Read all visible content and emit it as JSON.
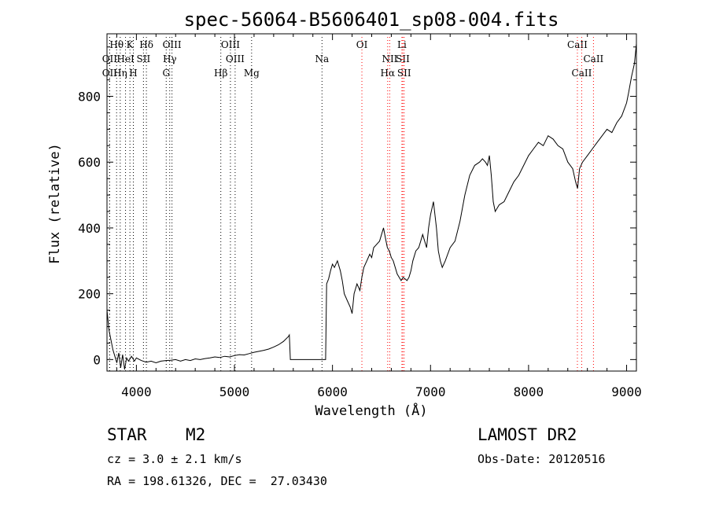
{
  "chart_data": {
    "type": "line",
    "title": "spec-56064-B5606401_sp08-004.fits",
    "xlabel": "Wavelength (Å)",
    "ylabel": "Flux (relative)",
    "xlim": [
      3700,
      9100
    ],
    "ylim": [
      -35,
      990
    ],
    "xticks": [
      4000,
      5000,
      6000,
      7000,
      8000,
      9000
    ],
    "yticks": [
      0,
      200,
      400,
      600,
      800
    ],
    "grid": false,
    "series": [
      {
        "points": [
          [
            3700,
            150
          ],
          [
            3720,
            90
          ],
          [
            3740,
            60
          ],
          [
            3760,
            30
          ],
          [
            3780,
            10
          ],
          [
            3800,
            -10
          ],
          [
            3820,
            20
          ],
          [
            3840,
            -25
          ],
          [
            3860,
            15
          ],
          [
            3880,
            -30
          ],
          [
            3900,
            5
          ],
          [
            3920,
            -5
          ],
          [
            3950,
            10
          ],
          [
            3980,
            -5
          ],
          [
            4000,
            5
          ],
          [
            4050,
            -3
          ],
          [
            4100,
            -8
          ],
          [
            4150,
            -5
          ],
          [
            4200,
            -10
          ],
          [
            4250,
            -5
          ],
          [
            4300,
            -3
          ],
          [
            4350,
            -2
          ],
          [
            4400,
            0
          ],
          [
            4450,
            -5
          ],
          [
            4500,
            0
          ],
          [
            4550,
            -3
          ],
          [
            4600,
            2
          ],
          [
            4650,
            0
          ],
          [
            4700,
            3
          ],
          [
            4750,
            5
          ],
          [
            4800,
            8
          ],
          [
            4850,
            6
          ],
          [
            4900,
            10
          ],
          [
            4950,
            8
          ],
          [
            5000,
            12
          ],
          [
            5050,
            15
          ],
          [
            5100,
            14
          ],
          [
            5150,
            18
          ],
          [
            5200,
            22
          ],
          [
            5250,
            25
          ],
          [
            5300,
            28
          ],
          [
            5350,
            32
          ],
          [
            5400,
            38
          ],
          [
            5450,
            45
          ],
          [
            5500,
            55
          ],
          [
            5550,
            70
          ],
          [
            5560,
            75
          ],
          [
            5570,
            0
          ],
          [
            5930,
            0
          ],
          [
            5940,
            230
          ],
          [
            5960,
            245
          ],
          [
            5980,
            270
          ],
          [
            6000,
            290
          ],
          [
            6020,
            280
          ],
          [
            6050,
            300
          ],
          [
            6080,
            270
          ],
          [
            6100,
            240
          ],
          [
            6120,
            200
          ],
          [
            6150,
            180
          ],
          [
            6180,
            160
          ],
          [
            6200,
            140
          ],
          [
            6220,
            200
          ],
          [
            6250,
            230
          ],
          [
            6280,
            210
          ],
          [
            6300,
            250
          ],
          [
            6320,
            280
          ],
          [
            6350,
            300
          ],
          [
            6380,
            320
          ],
          [
            6400,
            310
          ],
          [
            6420,
            340
          ],
          [
            6450,
            350
          ],
          [
            6480,
            360
          ],
          [
            6500,
            380
          ],
          [
            6520,
            400
          ],
          [
            6540,
            370
          ],
          [
            6560,
            340
          ],
          [
            6580,
            330
          ],
          [
            6600,
            310
          ],
          [
            6620,
            300
          ],
          [
            6640,
            280
          ],
          [
            6660,
            260
          ],
          [
            6680,
            250
          ],
          [
            6700,
            240
          ],
          [
            6720,
            250
          ],
          [
            6740,
            245
          ],
          [
            6760,
            240
          ],
          [
            6780,
            250
          ],
          [
            6800,
            270
          ],
          [
            6820,
            300
          ],
          [
            6850,
            330
          ],
          [
            6880,
            340
          ],
          [
            6900,
            360
          ],
          [
            6920,
            380
          ],
          [
            6940,
            360
          ],
          [
            6960,
            340
          ],
          [
            6980,
            400
          ],
          [
            7000,
            440
          ],
          [
            7030,
            480
          ],
          [
            7060,
            400
          ],
          [
            7080,
            330
          ],
          [
            7100,
            300
          ],
          [
            7120,
            280
          ],
          [
            7150,
            300
          ],
          [
            7200,
            340
          ],
          [
            7250,
            360
          ],
          [
            7300,
            420
          ],
          [
            7350,
            500
          ],
          [
            7400,
            560
          ],
          [
            7450,
            590
          ],
          [
            7500,
            600
          ],
          [
            7530,
            610
          ],
          [
            7560,
            600
          ],
          [
            7580,
            590
          ],
          [
            7600,
            620
          ],
          [
            7620,
            560
          ],
          [
            7640,
            480
          ],
          [
            7660,
            450
          ],
          [
            7700,
            470
          ],
          [
            7750,
            480
          ],
          [
            7800,
            510
          ],
          [
            7850,
            540
          ],
          [
            7900,
            560
          ],
          [
            7950,
            590
          ],
          [
            8000,
            620
          ],
          [
            8050,
            640
          ],
          [
            8100,
            660
          ],
          [
            8150,
            650
          ],
          [
            8200,
            680
          ],
          [
            8250,
            670
          ],
          [
            8300,
            650
          ],
          [
            8350,
            640
          ],
          [
            8400,
            600
          ],
          [
            8450,
            580
          ],
          [
            8480,
            540
          ],
          [
            8500,
            520
          ],
          [
            8520,
            580
          ],
          [
            8550,
            600
          ],
          [
            8600,
            620
          ],
          [
            8650,
            640
          ],
          [
            8700,
            660
          ],
          [
            8750,
            680
          ],
          [
            8800,
            700
          ],
          [
            8850,
            690
          ],
          [
            8900,
            720
          ],
          [
            8950,
            740
          ],
          [
            9000,
            780
          ],
          [
            9020,
            810
          ],
          [
            9050,
            860
          ],
          [
            9080,
            900
          ],
          [
            9100,
            960
          ]
        ]
      }
    ],
    "lines": [
      {
        "label": "Hθ",
        "x": 3798,
        "row": 0,
        "color": "#000000"
      },
      {
        "label": "OII",
        "x": 3727,
        "row": 1,
        "color": "#000000"
      },
      {
        "label": "OII",
        "x": 3727,
        "row": 2,
        "color": "#000000"
      },
      {
        "label": "HeI",
        "x": 3889,
        "row": 1,
        "color": "#000000"
      },
      {
        "label": "Hη",
        "x": 3835,
        "row": 2,
        "color": "#000000"
      },
      {
        "label": "K",
        "x": 3934,
        "row": 0,
        "color": "#000000"
      },
      {
        "label": "SII",
        "x": 4072,
        "row": 1,
        "color": "#000000"
      },
      {
        "label": "H",
        "x": 3969,
        "row": 2,
        "color": "#000000"
      },
      {
        "label": "Hδ",
        "x": 4102,
        "row": 0,
        "color": "#000000"
      },
      {
        "label": "OIII",
        "x": 4363,
        "row": 0,
        "color": "#000000"
      },
      {
        "label": "Hγ",
        "x": 4340,
        "row": 1,
        "color": "#000000"
      },
      {
        "label": "G",
        "x": 4304,
        "row": 2,
        "color": "#000000"
      },
      {
        "label": "OIII",
        "x": 4959,
        "row": 0,
        "color": "#000000"
      },
      {
        "label": "OIII",
        "x": 5007,
        "row": 1,
        "color": "#000000"
      },
      {
        "label": "Hβ",
        "x": 4861,
        "row": 2,
        "color": "#000000"
      },
      {
        "label": "Mg",
        "x": 5175,
        "row": 2,
        "color": "#000000"
      },
      {
        "label": "Na",
        "x": 5893,
        "row": 1,
        "color": "#000000"
      },
      {
        "label": "OI",
        "x": 6300,
        "row": 0,
        "color": "#ff0000"
      },
      {
        "label": "Li",
        "x": 6708,
        "row": 0,
        "color": "#ff0000"
      },
      {
        "label": "NII",
        "x": 6584,
        "row": 1,
        "color": "#ff0000"
      },
      {
        "label": "SII",
        "x": 6717,
        "row": 1,
        "color": "#ff0000"
      },
      {
        "label": "Hα",
        "x": 6563,
        "row": 2,
        "color": "#ff0000"
      },
      {
        "label": "SII",
        "x": 6731,
        "row": 2,
        "color": "#ff0000"
      },
      {
        "label": "CaII",
        "x": 8498,
        "row": 0,
        "color": "#ff0000"
      },
      {
        "label": "CaII",
        "x": 8662,
        "row": 1,
        "color": "#ff0000"
      },
      {
        "label": "CaII",
        "x": 8542,
        "row": 2,
        "color": "#ff0000"
      }
    ]
  },
  "info": {
    "object_type": "STAR",
    "subclass": "M2",
    "survey": "LAMOST DR2",
    "cz": "cz = 3.0 ± 2.1 km/s",
    "obs_date": "Obs-Date: 20120516",
    "coords": "RA = 198.61326, DEC =  27.03430"
  },
  "colors": {
    "axis": "#000000",
    "spectrum": "#000000",
    "blue_line": "#000000",
    "red_line": "#ff0000"
  }
}
